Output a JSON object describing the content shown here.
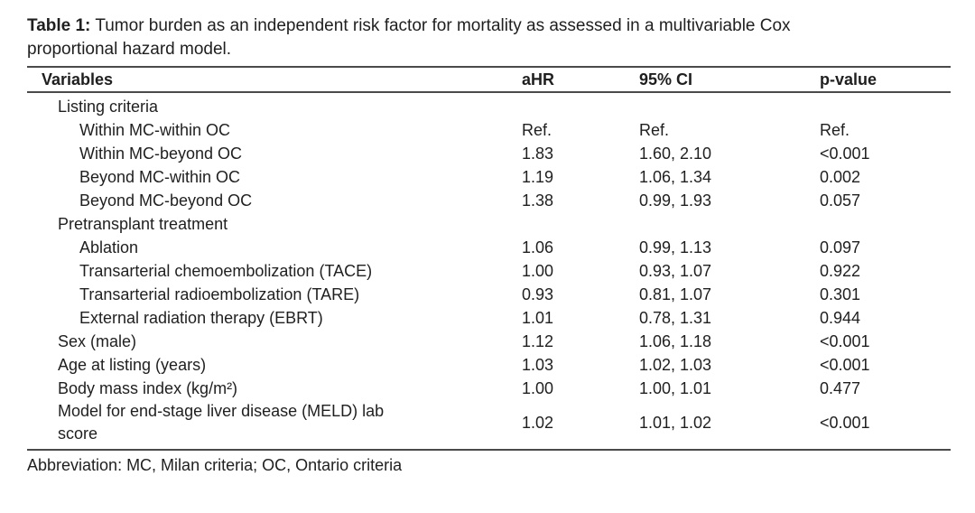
{
  "caption": {
    "label": "Table 1:",
    "line1": "Tumor burden as an independent risk factor for mortality as assessed in a multivariable Cox",
    "line2": "proportional hazard model."
  },
  "table": {
    "columns": [
      "Variables",
      "aHR",
      "95% CI",
      "p-value"
    ],
    "rows": [
      {
        "variable": "Listing criteria",
        "indent": 1,
        "ahr": "",
        "ci": "",
        "p": ""
      },
      {
        "variable": "Within MC-within OC",
        "indent": 2,
        "ahr": "Ref.",
        "ci": "Ref.",
        "p": "Ref."
      },
      {
        "variable": "Within MC-beyond OC",
        "indent": 2,
        "ahr": "1.83",
        "ci": "1.60, 2.10",
        "p": "<0.001"
      },
      {
        "variable": "Beyond MC-within OC",
        "indent": 2,
        "ahr": "1.19",
        "ci": "1.06, 1.34",
        "p": "0.002"
      },
      {
        "variable": "Beyond MC-beyond OC",
        "indent": 2,
        "ahr": "1.38",
        "ci": "0.99, 1.93",
        "p": "0.057"
      },
      {
        "variable": "Pretransplant treatment",
        "indent": 1,
        "ahr": "",
        "ci": "",
        "p": ""
      },
      {
        "variable": "Ablation",
        "indent": 2,
        "ahr": "1.06",
        "ci": "0.99, 1.13",
        "p": "0.097"
      },
      {
        "variable": "Transarterial chemoembolization (TACE)",
        "indent": 2,
        "ahr": "1.00",
        "ci": "0.93, 1.07",
        "p": "0.922"
      },
      {
        "variable": "Transarterial radioembolization (TARE)",
        "indent": 2,
        "ahr": "0.93",
        "ci": "0.81, 1.07",
        "p": "0.301"
      },
      {
        "variable": "External radiation therapy (EBRT)",
        "indent": 2,
        "ahr": "1.01",
        "ci": "0.78, 1.31",
        "p": "0.944"
      },
      {
        "variable": "Sex (male)",
        "indent": 1,
        "ahr": "1.12",
        "ci": "1.06, 1.18",
        "p": "<0.001"
      },
      {
        "variable": "Age at listing (years)",
        "indent": 1,
        "ahr": "1.03",
        "ci": "1.02, 1.03",
        "p": "<0.001"
      },
      {
        "variable": "Body mass index (kg/m²)",
        "indent": 1,
        "ahr": "1.00",
        "ci": "1.00, 1.01",
        "p": "0.477"
      },
      {
        "variable": "Model for end-stage liver disease (MELD) lab score",
        "indent": 1,
        "ahr": "1.02",
        "ci": "1.01, 1.02",
        "p": "<0.001"
      }
    ]
  },
  "footnote": "Abbreviation: MC, Milan criteria; OC, Ontario criteria"
}
